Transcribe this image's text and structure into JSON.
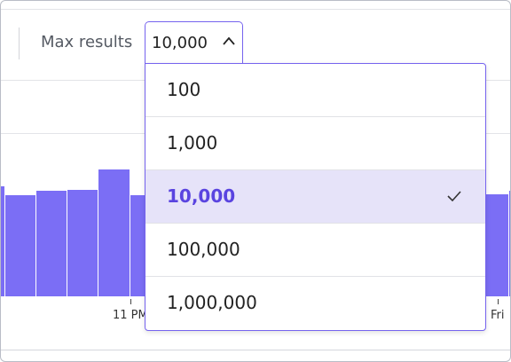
{
  "toolbar": {
    "label": "Max results",
    "selected": "10,000"
  },
  "dropdown": {
    "options": [
      "100",
      "1,000",
      "10,000",
      "100,000",
      "1,000,000"
    ]
  },
  "axis": {
    "labels": [
      "11 PM",
      "Fri"
    ]
  }
}
